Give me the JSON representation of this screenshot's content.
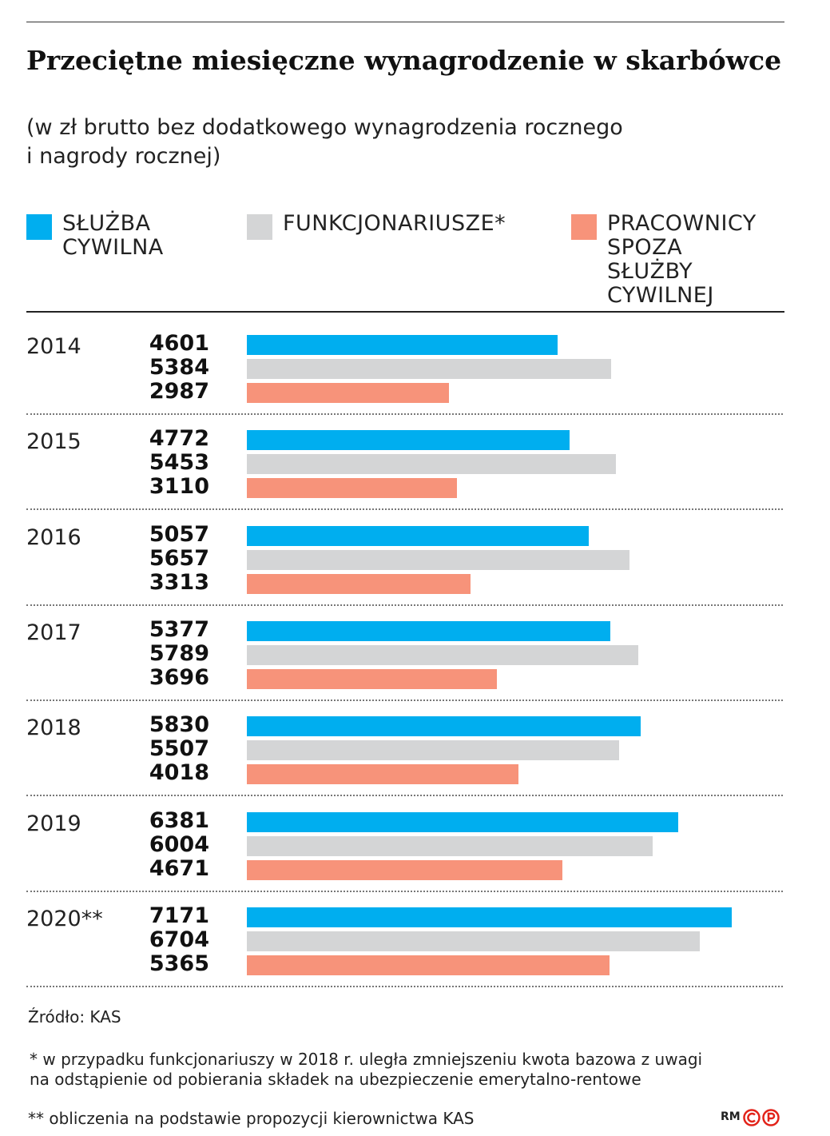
{
  "title": "Przeciętne miesięczne wynagrodzenie w skarbówce",
  "subtitle": "(w zł brutto bez dodatkowego wynagrodzenia rocznego\ni nagrody rocznej)",
  "legend": [
    {
      "label": "SŁUŻBA\nCYWILNA",
      "color": "#00aeef"
    },
    {
      "label": "FUNKCJONARIUSZE*",
      "color": "#d4d5d6"
    },
    {
      "label": "PRACOWNICY\nSPOZA SŁUŻBY\nCYWILNEJ",
      "color": "#f7937a"
    }
  ],
  "chart_data": {
    "type": "bar",
    "orientation": "horizontal",
    "categories": [
      "2014",
      "2015",
      "2016",
      "2017",
      "2018",
      "2019",
      "2020**"
    ],
    "series": [
      {
        "name": "SŁUŻBA CYWILNA",
        "color": "#00aeef",
        "values": [
          4601,
          4772,
          5057,
          5377,
          5830,
          6381,
          7171
        ]
      },
      {
        "name": "FUNKCJONARIUSZE*",
        "color": "#d4d5d6",
        "values": [
          5384,
          5453,
          5657,
          5789,
          5507,
          6004,
          6704
        ]
      },
      {
        "name": "PRACOWNICY SPOZA SŁUŻBY CYWILNEJ",
        "color": "#f7937a",
        "values": [
          2987,
          3110,
          3313,
          3696,
          4018,
          4671,
          5365
        ]
      }
    ],
    "xlim": [
      0,
      7171
    ],
    "grid": false,
    "legend_position": "top"
  },
  "source": "Źródło: KAS",
  "note1": "* w przypadku funkcjonariuszy w 2018 r. uległa zmniejszeniu kwota bazowa z uwagi\n   na odstąpienie od pobierania składek na ubezpieczenie emerytalno-rentowe",
  "note2": "** obliczenia na podstawie propozycji kierownictwa KAS",
  "credit": "RM",
  "logo_icon": "cp-logo"
}
